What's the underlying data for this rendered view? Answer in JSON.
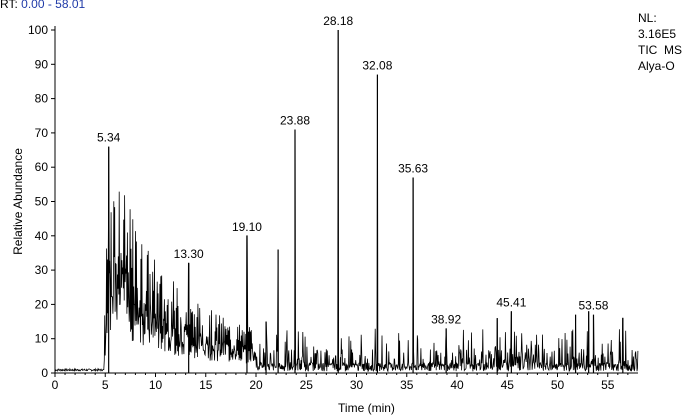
{
  "header": {
    "rt_prefix": "RT:",
    "rt_range": "0.00 - 58.01",
    "rt_color": "#1f3aa8"
  },
  "info": {
    "nl_label": "NL:",
    "nl_value": "3.16E5",
    "scan_type": "TIC  MS",
    "sample": "Alya-O"
  },
  "chart_data": {
    "type": "line",
    "title": "",
    "xlabel": "Time (min)",
    "ylabel": "Relative Abundance",
    "xlim": [
      0,
      58.01
    ],
    "ylim": [
      0,
      100
    ],
    "x_ticks": [
      0,
      5,
      10,
      15,
      20,
      25,
      30,
      35,
      40,
      45,
      50,
      55
    ],
    "y_ticks": [
      0,
      10,
      20,
      30,
      40,
      50,
      60,
      70,
      80,
      90,
      100
    ],
    "grid": false,
    "line_color": "#000000",
    "peaks": [
      {
        "label": "5.34",
        "x": 5.34,
        "y": 66
      },
      {
        "label": "13.30",
        "x": 13.3,
        "y": 32
      },
      {
        "label": "19.10",
        "x": 19.1,
        "y": 40
      },
      {
        "label": "23.88",
        "x": 23.88,
        "y": 71
      },
      {
        "label": "28.18",
        "x": 28.18,
        "y": 100
      },
      {
        "label": "32.08",
        "x": 32.08,
        "y": 87
      },
      {
        "label": "35.63",
        "x": 35.63,
        "y": 57
      },
      {
        "label": "38.92",
        "x": 38.92,
        "y": 13
      },
      {
        "label": "45.41",
        "x": 45.41,
        "y": 18
      },
      {
        "label": "53.58",
        "x": 53.58,
        "y": 17
      }
    ],
    "unlabeled_spikes": [
      {
        "x": 22.2,
        "y": 36
      },
      {
        "x": 21.0,
        "y": 15
      },
      {
        "x": 51.8,
        "y": 17
      },
      {
        "x": 53.1,
        "y": 18
      },
      {
        "x": 44.0,
        "y": 16
      },
      {
        "x": 56.5,
        "y": 16
      }
    ]
  }
}
